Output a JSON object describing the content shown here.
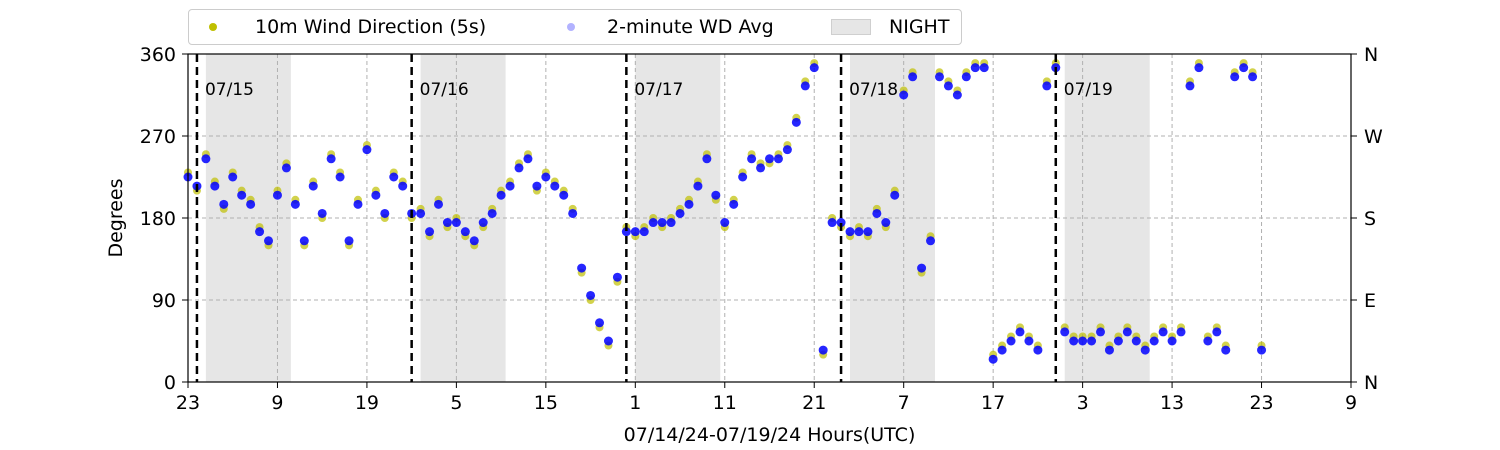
{
  "chart_data": {
    "type": "scatter",
    "xlabel": "07/14/24-07/19/24  Hours(UTC)",
    "ylabel": "Degrees",
    "ylim": [
      0,
      360
    ],
    "x_unit": "hours since 07/14/24 23:00 UTC",
    "xlim": [
      0,
      130
    ],
    "x_ticks": [
      {
        "at": 0,
        "label": "23"
      },
      {
        "at": 10,
        "label": "9"
      },
      {
        "at": 20,
        "label": "19"
      },
      {
        "at": 30,
        "label": "5"
      },
      {
        "at": 40,
        "label": "15"
      },
      {
        "at": 50,
        "label": "1"
      },
      {
        "at": 60,
        "label": "11"
      },
      {
        "at": 70,
        "label": "21"
      },
      {
        "at": 80,
        "label": "7"
      },
      {
        "at": 90,
        "label": "17"
      },
      {
        "at": 100,
        "label": "3"
      },
      {
        "at": 110,
        "label": "13"
      },
      {
        "at": 120,
        "label": "23"
      },
      {
        "at": 130,
        "label": "9"
      }
    ],
    "y_ticks": [
      0,
      90,
      180,
      270,
      360
    ],
    "y_ticks_right": [
      {
        "at": 0,
        "label": "N"
      },
      {
        "at": 90,
        "label": "E"
      },
      {
        "at": 180,
        "label": "S"
      },
      {
        "at": 270,
        "label": "W"
      },
      {
        "at": 360,
        "label": "N"
      }
    ],
    "grid": true,
    "legend_placement": "top-left-outside",
    "day_markers": [
      {
        "at": 1,
        "label": "07/15"
      },
      {
        "at": 25,
        "label": "07/16"
      },
      {
        "at": 49,
        "label": "07/17"
      },
      {
        "at": 73,
        "label": "07/18"
      },
      {
        "at": 97,
        "label": "07/19"
      }
    ],
    "night_spans": [
      [
        2,
        11.5
      ],
      [
        26,
        35.5
      ],
      [
        50,
        59.5
      ],
      [
        74,
        83.5
      ],
      [
        98,
        107.5
      ]
    ],
    "series": [
      {
        "name": "10m Wind Direction (5s)",
        "color": "#bfbf00",
        "x": [
          0,
          1,
          2,
          3,
          4,
          5,
          6,
          7,
          8,
          9,
          10,
          11,
          12,
          13,
          14,
          15,
          16,
          17,
          18,
          19,
          20,
          21,
          22,
          23,
          24,
          25,
          26,
          27,
          28,
          29,
          30,
          31,
          32,
          33,
          34,
          35,
          36,
          37,
          38,
          39,
          40,
          41,
          42,
          43,
          44,
          45,
          46,
          47,
          48,
          49,
          50,
          51,
          52,
          53,
          54,
          55,
          56,
          57,
          58,
          59,
          60,
          61,
          62,
          63,
          64,
          65,
          66,
          67,
          68,
          69,
          70,
          71,
          72,
          73,
          74,
          75,
          76,
          77,
          78,
          79,
          80,
          81,
          82,
          83,
          84,
          85,
          86,
          87,
          88,
          89,
          90,
          91,
          92,
          93,
          94,
          95,
          96,
          97,
          98,
          99,
          100,
          101,
          102,
          103,
          104,
          105,
          106,
          107,
          108,
          109,
          110,
          111,
          112,
          113,
          114,
          115,
          116,
          117,
          118,
          119,
          120
        ],
        "y": [
          230,
          210,
          250,
          220,
          190,
          230,
          210,
          200,
          170,
          150,
          210,
          240,
          200,
          150,
          220,
          180,
          250,
          230,
          150,
          200,
          260,
          210,
          180,
          230,
          220,
          180,
          190,
          160,
          200,
          170,
          180,
          160,
          150,
          170,
          190,
          210,
          220,
          240,
          250,
          210,
          230,
          220,
          210,
          190,
          120,
          90,
          60,
          40,
          110,
          170,
          160,
          170,
          180,
          170,
          180,
          190,
          200,
          220,
          250,
          200,
          170,
          200,
          230,
          250,
          240,
          240,
          250,
          260,
          290,
          330,
          350,
          30,
          180,
          170,
          160,
          170,
          160,
          190,
          170,
          210,
          320,
          340,
          120,
          160,
          340,
          330,
          320,
          340,
          350,
          350,
          30,
          40,
          50,
          60,
          50,
          40,
          330,
          350,
          60,
          50,
          50,
          50,
          60,
          40,
          50,
          60,
          50,
          40,
          50,
          60,
          50,
          60,
          330,
          350,
          50,
          60,
          40,
          340,
          350,
          340,
          40
        ]
      },
      {
        "name": "2-minute WD Avg",
        "color": "#0000ff",
        "x": [
          0,
          1,
          2,
          3,
          4,
          5,
          6,
          7,
          8,
          9,
          10,
          11,
          12,
          13,
          14,
          15,
          16,
          17,
          18,
          19,
          20,
          21,
          22,
          23,
          24,
          25,
          26,
          27,
          28,
          29,
          30,
          31,
          32,
          33,
          34,
          35,
          36,
          37,
          38,
          39,
          40,
          41,
          42,
          43,
          44,
          45,
          46,
          47,
          48,
          49,
          50,
          51,
          52,
          53,
          54,
          55,
          56,
          57,
          58,
          59,
          60,
          61,
          62,
          63,
          64,
          65,
          66,
          67,
          68,
          69,
          70,
          71,
          72,
          73,
          74,
          75,
          76,
          77,
          78,
          79,
          80,
          81,
          82,
          83,
          84,
          85,
          86,
          87,
          88,
          89,
          90,
          91,
          92,
          93,
          94,
          95,
          96,
          97,
          98,
          99,
          100,
          101,
          102,
          103,
          104,
          105,
          106,
          107,
          108,
          109,
          110,
          111,
          112,
          113,
          114,
          115,
          116,
          117,
          118,
          119,
          120
        ],
        "y": [
          225,
          215,
          245,
          215,
          195,
          225,
          205,
          195,
          165,
          155,
          205,
          235,
          195,
          155,
          215,
          185,
          245,
          225,
          155,
          195,
          255,
          205,
          185,
          225,
          215,
          185,
          185,
          165,
          195,
          175,
          175,
          165,
          155,
          175,
          185,
          205,
          215,
          235,
          245,
          215,
          225,
          215,
          205,
          185,
          125,
          95,
          65,
          45,
          115,
          165,
          165,
          165,
          175,
          175,
          175,
          185,
          195,
          215,
          245,
          205,
          175,
          195,
          225,
          245,
          235,
          245,
          245,
          255,
          285,
          325,
          345,
          35,
          175,
          175,
          165,
          165,
          165,
          185,
          175,
          205,
          315,
          335,
          125,
          155,
          335,
          325,
          315,
          335,
          345,
          345,
          25,
          35,
          45,
          55,
          45,
          35,
          325,
          345,
          55,
          45,
          45,
          45,
          55,
          35,
          45,
          55,
          45,
          35,
          45,
          55,
          45,
          55,
          325,
          345,
          45,
          55,
          35,
          335,
          345,
          335,
          35
        ]
      }
    ]
  },
  "legend": {
    "items": [
      {
        "label": "10m Wind Direction (5s)",
        "color": "#bfbf00"
      },
      {
        "label": "2-minute WD Avg",
        "color": "#0000ff"
      },
      {
        "label": "NIGHT",
        "color": "#e6e6e6"
      }
    ]
  }
}
